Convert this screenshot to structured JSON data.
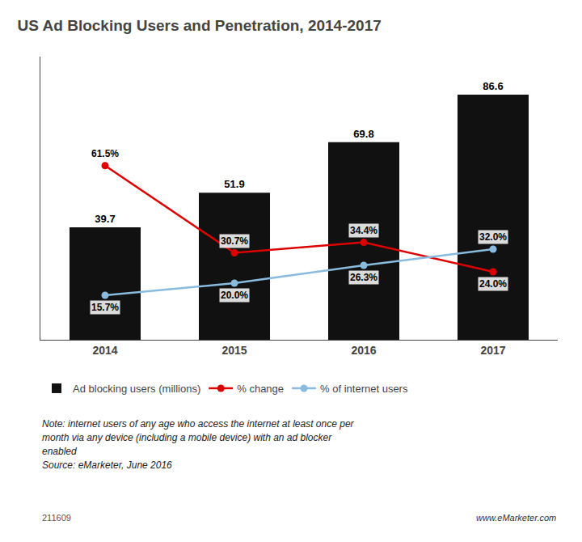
{
  "chart_data": {
    "type": "bar",
    "title": "US Ad Blocking Users and Penetration, 2014-2017",
    "categories": [
      "2014",
      "2015",
      "2016",
      "2017"
    ],
    "series": [
      {
        "name": "Ad blocking users (millions)",
        "type": "bar",
        "color": "#111111",
        "values": [
          39.7,
          51.9,
          69.8,
          86.6
        ],
        "data_labels": true
      },
      {
        "name": "% change",
        "type": "line",
        "color": "#dd0000",
        "marker": "circle",
        "line_style": "solid",
        "values": [
          61.5,
          30.7,
          34.4,
          24.0
        ],
        "value_labels": [
          "61.5%",
          "30.7%",
          "34.4%",
          "24.0%"
        ]
      },
      {
        "name": "% of internet users",
        "type": "line",
        "color": "#88bbdd",
        "marker": "circle",
        "line_style": "solid",
        "values": [
          15.7,
          20.0,
          26.3,
          32.0
        ],
        "value_labels": [
          "15.7%",
          "20.0%",
          "26.3%",
          "32.0%"
        ]
      }
    ],
    "ylim": [
      0,
      100
    ],
    "grid": false,
    "tick_labels": "x",
    "legend": "bottom",
    "annotations": [
      "Note: internet users of any age who access the internet at least once per",
      "month via any device (including a mobile device) with an ad blocker",
      "enabled",
      "Source: eMarketer, June 2016",
      "211609",
      "www.eMarketer.com"
    ]
  }
}
